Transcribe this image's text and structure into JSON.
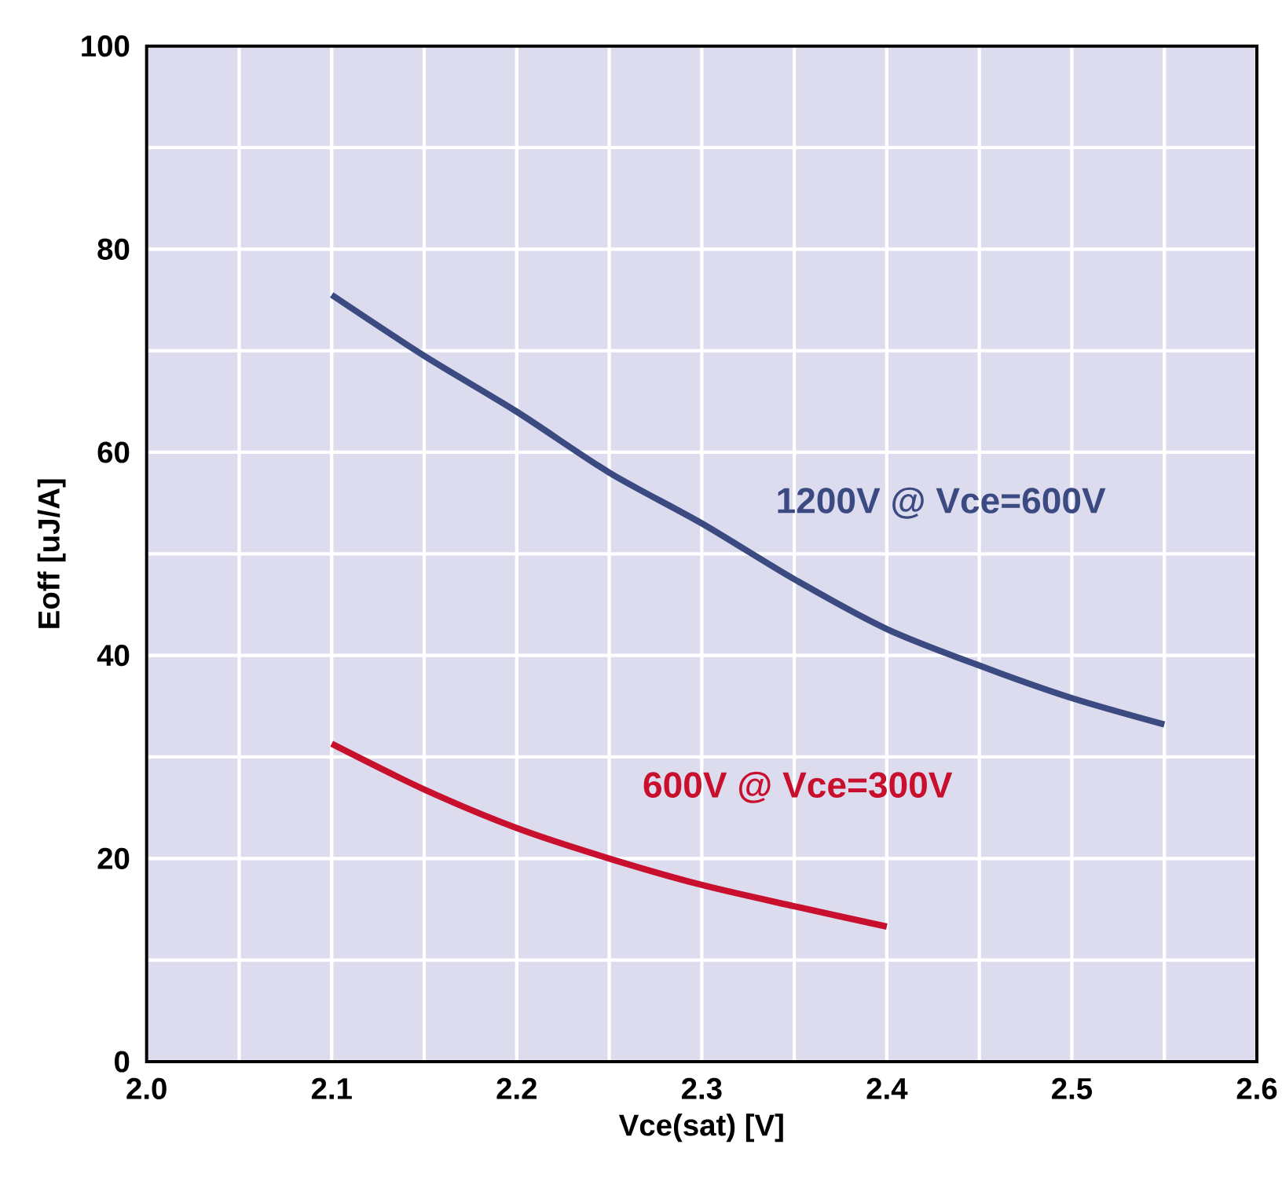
{
  "chart_data": {
    "type": "line",
    "xlabel": "Vce(sat) [V]",
    "ylabel": "Eoff [uJ/A]",
    "xlim": [
      2.0,
      2.6
    ],
    "xticks": [
      {
        "value": 2.0,
        "label": "2.0"
      },
      2.1,
      2.2,
      2.3,
      2.4,
      2.5,
      {
        "value": 2.6,
        "label": "2.6"
      }
    ],
    "ylim": [
      0,
      100
    ],
    "yticks": [
      0,
      20,
      40,
      60,
      80,
      100
    ],
    "grid": true,
    "legend": false,
    "marker": "none",
    "line_style": "solid",
    "series": [
      {
        "name": "1200V @ Vce=600V",
        "color": "#3b4a80",
        "x": [
          2.1,
          2.15,
          2.2,
          2.25,
          2.3,
          2.35,
          2.4,
          2.45,
          2.5,
          2.55
        ],
        "values": [
          75.5,
          69.5,
          64,
          58,
          53,
          47.5,
          42.6,
          39,
          35.8,
          33.2
        ]
      },
      {
        "name": "600V @ Vce=300V",
        "color": "#c8102e",
        "x": [
          2.1,
          2.15,
          2.2,
          2.25,
          2.3,
          2.35,
          2.4
        ],
        "values": [
          31.3,
          26.8,
          23,
          20,
          17.4,
          15.3,
          13.3
        ]
      }
    ]
  }
}
